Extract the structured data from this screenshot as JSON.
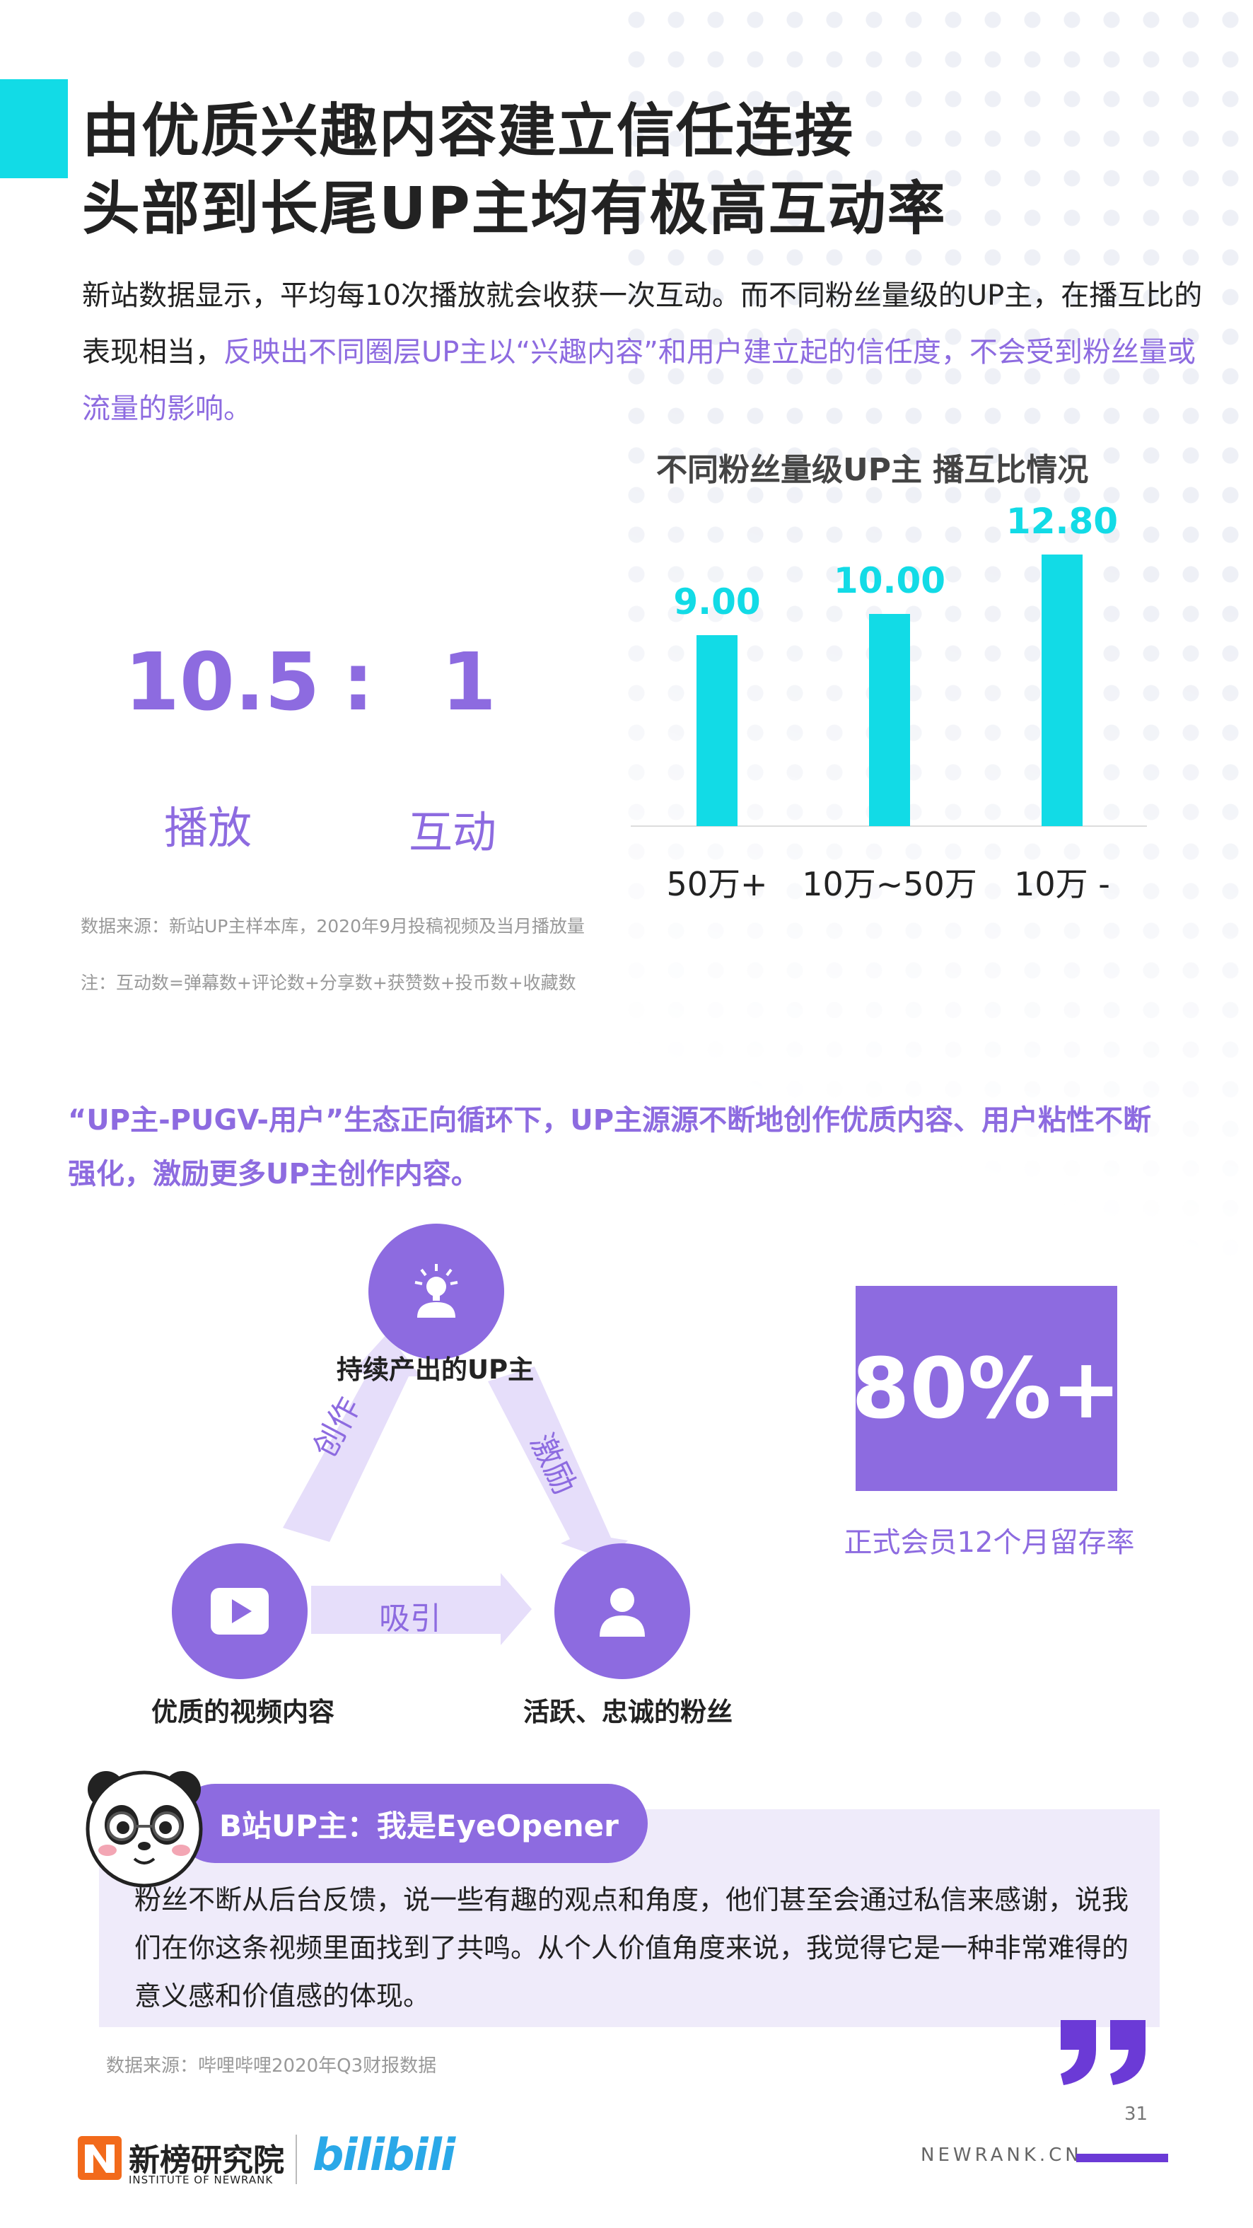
{
  "header": {
    "title_line1": "由优质兴趣内容建立信任连接",
    "title_line2": "头部到长尾UP主均有极高互动率"
  },
  "intro": {
    "plain": "新站数据显示，平均每10次播放就会收获一次互动。而不同粉丝量级的UP主，在播互比的表现相当，",
    "highlight": "反映出不同圈层UP主以“兴趣内容”和用户建立起的信任度，不会受到粉丝量或流量的影响。"
  },
  "ratio": {
    "left_value": "10.5",
    "separator": ":",
    "right_value": "1",
    "left_label": "播放",
    "right_label": "互动"
  },
  "notes": {
    "source": "数据来源：新站UP主样本库，2020年9月投稿视频及当月播放量",
    "definition": "注：互动数=弹幕数+评论数+分享数+获赞数+投币数+收藏数"
  },
  "chart_data": {
    "type": "bar",
    "title": "不同粉丝量级UP主 播互比情况",
    "categories": [
      "50万+",
      "10万~50万",
      "10万 -"
    ],
    "values": [
      9.0,
      10.0,
      12.8
    ],
    "value_labels": [
      "9.00",
      "10.00",
      "12.80"
    ],
    "ylim": [
      0,
      14
    ],
    "bar_color": "#12dbe6",
    "label_color": "#12dbe6",
    "grid": false
  },
  "ecosystem": {
    "quote": "“UP主-PUGV-用户”生态正向循环下，UP主源源不断地创作优质内容、用户粘性不断强化，激励更多UP主创作内容。",
    "nodes": {
      "creator": "持续产出的UP主",
      "content": "优质的视频内容",
      "fans": "活跃、忠诚的粉丝"
    },
    "arrows": {
      "create": "创作",
      "motivate": "激励",
      "attract": "吸引"
    },
    "icons": {
      "creator": "lightbulb-person-icon",
      "content": "play-icon",
      "fans": "user-icon"
    }
  },
  "kpi": {
    "value": "80%+",
    "label": "正式会员12个月留存率"
  },
  "testimonial": {
    "speaker": "B站UP主：我是EyeOpener",
    "text": "粉丝不断从后台反馈，说一些有趣的观点和角度，他们甚至会通过私信来感谢，说我们在你这条视频里面找到了共鸣。从个人价值角度来说，我觉得它是一种非常难得的意义感和价值感的体现。",
    "source": "数据来源：哔哩哔哩2020年Q3财报数据"
  },
  "footer": {
    "logo_name": "新榜研究院",
    "logo_sub": "INSTITUTE OF NEWRANK",
    "partner": "bilibili",
    "page_number": "31",
    "site": "NEWRANK.CN"
  },
  "colors": {
    "accent_cyan": "#12dbe6",
    "purple": "#8d6be0",
    "light_purple": "#e6defa",
    "deep_purple": "#6b3ad6",
    "logo_orange": "#f26a1b"
  }
}
